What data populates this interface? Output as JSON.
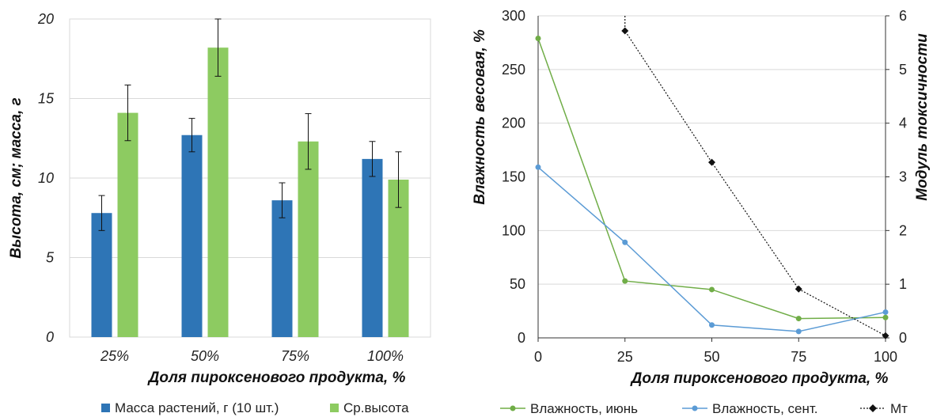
{
  "chart_data": [
    {
      "type": "bar",
      "categories": [
        "25%",
        "50%",
        "75%",
        "100%"
      ],
      "series": [
        {
          "name": "Масса растений, г (10 шт.)",
          "color": "#2e75b6",
          "values": [
            7.8,
            12.7,
            8.6,
            11.2
          ],
          "errors": [
            1.1,
            1.05,
            1.1,
            1.1
          ]
        },
        {
          "name": "Ср.высота",
          "color": "#8dcb61",
          "values": [
            14.1,
            18.2,
            12.3,
            9.9
          ],
          "errors": [
            1.75,
            1.8,
            1.75,
            1.75
          ]
        }
      ],
      "ylim": [
        0,
        20
      ],
      "yticks": [
        "0",
        "5",
        "10",
        "15",
        "20"
      ],
      "xlabel": "Доля пироксенового продукта, %",
      "ylabel": "Высота, см; масса, г",
      "grid": true,
      "legend_position": "bottom"
    },
    {
      "type": "line",
      "x": [
        0,
        25,
        50,
        75,
        100
      ],
      "xticks": [
        "0",
        "25",
        "50",
        "75",
        "100"
      ],
      "series": [
        {
          "name": "Влажность, июнь",
          "axis": "left",
          "color": "#70ad47",
          "marker": "circle",
          "values": [
            279,
            53,
            45,
            18,
            19
          ]
        },
        {
          "name": "Влажность, сент.",
          "axis": "left",
          "color": "#5b9bd5",
          "marker": "circle",
          "values": [
            159,
            89,
            12,
            6,
            24
          ]
        },
        {
          "name": "Мт",
          "axis": "right",
          "color": "#111111",
          "marker": "diamond",
          "dashed": true,
          "values": [
            null,
            5.72,
            3.27,
            0.91,
            0.04
          ]
        }
      ],
      "mt_offscale_start": {
        "x": 25,
        "y": 6
      },
      "ylim_left": [
        0,
        300
      ],
      "yticks_left": [
        "0",
        "50",
        "100",
        "150",
        "200",
        "250",
        "300"
      ],
      "ylim_right": [
        0,
        6
      ],
      "yticks_right": [
        "0",
        "1",
        "2",
        "3",
        "4",
        "5",
        "6"
      ],
      "xlabel": "Доля пироксенового продукта, %",
      "ylabel_left": "Влажность весовая, %",
      "ylabel_right": "Модуль токсичности",
      "grid": true,
      "legend_position": "bottom"
    }
  ]
}
